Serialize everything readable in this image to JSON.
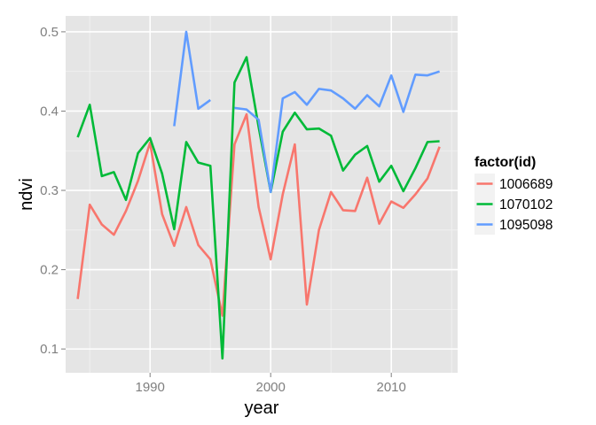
{
  "chart_data": {
    "type": "line",
    "xlabel": "year",
    "ylabel": "ndvi",
    "xlim": [
      1983,
      2015.5
    ],
    "ylim": [
      0.07,
      0.52
    ],
    "x_major_ticks": [
      1990,
      2000,
      2010
    ],
    "x_minor_ticks": [
      1985,
      1995,
      2005,
      2015
    ],
    "x_tick_labels": [
      "1990",
      "2000",
      "2010"
    ],
    "y_major_ticks": [
      0.1,
      0.2,
      0.3,
      0.4,
      0.5
    ],
    "y_minor_ticks": [
      0.15,
      0.25,
      0.35,
      0.45
    ],
    "y_tick_labels": [
      "0.1",
      "0.2",
      "0.3",
      "0.4",
      "0.5"
    ],
    "grid": true,
    "legend": {
      "title": "factor(id)",
      "placement": "right"
    },
    "series": [
      {
        "name": "1006689",
        "color": "#F8766D",
        "points": [
          [
            1984,
            0.163
          ],
          [
            1985,
            0.282
          ],
          [
            1986,
            0.257
          ],
          [
            1987,
            0.244
          ],
          [
            1988,
            0.274
          ],
          [
            1989,
            0.312
          ],
          [
            1990,
            0.36
          ],
          [
            1991,
            0.27
          ],
          [
            1992,
            0.23
          ],
          [
            1993,
            0.279
          ],
          [
            1994,
            0.231
          ],
          [
            1995,
            0.213
          ],
          [
            1996,
            0.142
          ],
          [
            1997,
            0.358
          ],
          [
            1998,
            0.396
          ],
          [
            1999,
            0.279
          ],
          [
            2000,
            0.213
          ],
          [
            2001,
            0.295
          ],
          [
            2002,
            0.358
          ],
          [
            2003,
            0.156
          ],
          [
            2004,
            0.25
          ],
          [
            2005,
            0.298
          ],
          [
            2006,
            0.275
          ],
          [
            2007,
            0.274
          ],
          [
            2008,
            0.316
          ],
          [
            2009,
            0.258
          ],
          [
            2010,
            0.286
          ],
          [
            2011,
            0.278
          ],
          [
            2012,
            0.295
          ],
          [
            2013,
            0.315
          ],
          [
            2014,
            0.355
          ]
        ]
      },
      {
        "name": "1070102",
        "color": "#00BA38",
        "points": [
          [
            1984,
            0.367
          ],
          [
            1985,
            0.408
          ],
          [
            1986,
            0.318
          ],
          [
            1987,
            0.323
          ],
          [
            1988,
            0.288
          ],
          [
            1989,
            0.347
          ],
          [
            1990,
            0.366
          ],
          [
            1991,
            0.321
          ],
          [
            1992,
            0.251
          ],
          [
            1993,
            0.361
          ],
          [
            1994,
            0.335
          ],
          [
            1995,
            0.331
          ],
          [
            1996,
            0.088
          ],
          [
            1997,
            0.436
          ],
          [
            1998,
            0.468
          ],
          [
            1999,
            0.38
          ],
          [
            2000,
            0.298
          ],
          [
            2001,
            0.374
          ],
          [
            2002,
            0.398
          ],
          [
            2003,
            0.377
          ],
          [
            2004,
            0.378
          ],
          [
            2005,
            0.369
          ],
          [
            2006,
            0.325
          ],
          [
            2007,
            0.345
          ],
          [
            2008,
            0.356
          ],
          [
            2009,
            0.311
          ],
          [
            2010,
            0.331
          ],
          [
            2011,
            0.299
          ],
          [
            2012,
            0.328
          ],
          [
            2013,
            0.361
          ],
          [
            2014,
            0.362
          ]
        ]
      },
      {
        "name": "1095098",
        "color": "#619CFF",
        "segments": [
          [
            [
              1992,
              0.381
            ],
            [
              1993,
              0.5
            ],
            [
              1994,
              0.403
            ],
            [
              1995,
              0.414
            ]
          ],
          [
            [
              1997,
              0.404
            ],
            [
              1998,
              0.402
            ],
            [
              1999,
              0.389
            ],
            [
              2000,
              0.298
            ],
            [
              2001,
              0.416
            ],
            [
              2002,
              0.424
            ],
            [
              2003,
              0.408
            ],
            [
              2004,
              0.428
            ],
            [
              2005,
              0.426
            ],
            [
              2006,
              0.416
            ],
            [
              2007,
              0.403
            ],
            [
              2008,
              0.42
            ],
            [
              2009,
              0.406
            ],
            [
              2010,
              0.445
            ],
            [
              2011,
              0.399
            ],
            [
              2012,
              0.446
            ],
            [
              2013,
              0.445
            ],
            [
              2014,
              0.45
            ]
          ]
        ]
      }
    ]
  }
}
